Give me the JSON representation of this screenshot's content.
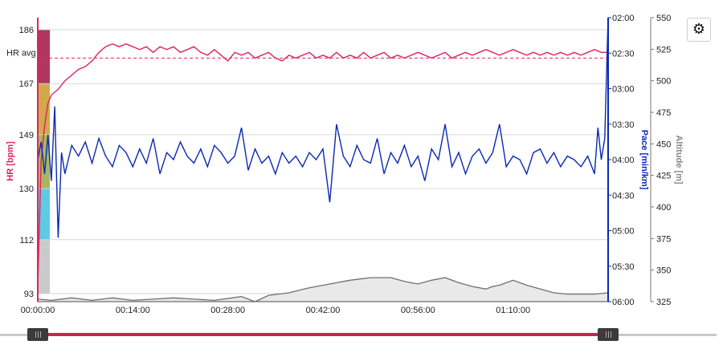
{
  "chart_data": {
    "type": "line",
    "x_ticks": [
      "00:00:00",
      "00:14:00",
      "00:28:00",
      "00:42:00",
      "00:56:00",
      "01:10:00"
    ],
    "x_range_min": [
      0,
      84
    ],
    "y_axes": {
      "hr": {
        "title": "HR [bpm]",
        "ticks": [
          93,
          112,
          130,
          149,
          167,
          186
        ],
        "range": [
          93,
          186
        ],
        "color": "#e0245e"
      },
      "pace": {
        "title": "Pace [min/km]",
        "ticks": [
          "02:00",
          "02:30",
          "03:00",
          "03:30",
          "04:00",
          "04:30",
          "05:00",
          "05:30",
          "06:00"
        ],
        "range_min_per_km": [
          2.0,
          6.0
        ],
        "color": "#0a28b5"
      },
      "altitude": {
        "title": "Altitude [m]",
        "ticks": [
          325,
          350,
          375,
          400,
          425,
          450,
          475,
          500,
          525,
          550
        ],
        "range": [
          325,
          550
        ],
        "color": "#888888"
      }
    },
    "hr_avg": {
      "label": "HR avg",
      "value": 176
    },
    "hr_zones": [
      {
        "from": 93,
        "to": 112,
        "color": "#c8cacb"
      },
      {
        "from": 112,
        "to": 130,
        "color": "#5ccbe3"
      },
      {
        "from": 130,
        "to": 149,
        "color": "#a9b65f"
      },
      {
        "from": 149,
        "to": 167,
        "color": "#d2a84c"
      },
      {
        "from": 167,
        "to": 186,
        "color": "#b03660"
      }
    ],
    "series": [
      {
        "name": "HR [bpm]",
        "axis": "hr",
        "points": [
          [
            0,
            95
          ],
          [
            0.5,
            140
          ],
          [
            1,
            152
          ],
          [
            1.5,
            160
          ],
          [
            2,
            163
          ],
          [
            3,
            165
          ],
          [
            4,
            168
          ],
          [
            5,
            170
          ],
          [
            6,
            172
          ],
          [
            7,
            173
          ],
          [
            8,
            175
          ],
          [
            9,
            178
          ],
          [
            10,
            180
          ],
          [
            11,
            181
          ],
          [
            12,
            180
          ],
          [
            13,
            181
          ],
          [
            14,
            180
          ],
          [
            15,
            179
          ],
          [
            16,
            180
          ],
          [
            17,
            178
          ],
          [
            18,
            180
          ],
          [
            19,
            179
          ],
          [
            20,
            180
          ],
          [
            21,
            178
          ],
          [
            22,
            179
          ],
          [
            23,
            180
          ],
          [
            24,
            178
          ],
          [
            25,
            177
          ],
          [
            26,
            179
          ],
          [
            27,
            177
          ],
          [
            28,
            175
          ],
          [
            29,
            178
          ],
          [
            30,
            177
          ],
          [
            31,
            178
          ],
          [
            32,
            176
          ],
          [
            33,
            177
          ],
          [
            34,
            178
          ],
          [
            35,
            176
          ],
          [
            36,
            175
          ],
          [
            37,
            177
          ],
          [
            38,
            176
          ],
          [
            39,
            177
          ],
          [
            40,
            178
          ],
          [
            41,
            176
          ],
          [
            42,
            177
          ],
          [
            43,
            176
          ],
          [
            44,
            178
          ],
          [
            45,
            176
          ],
          [
            46,
            177
          ],
          [
            47,
            176
          ],
          [
            48,
            178
          ],
          [
            49,
            176
          ],
          [
            50,
            177
          ],
          [
            51,
            178
          ],
          [
            52,
            176
          ],
          [
            53,
            177
          ],
          [
            54,
            176
          ],
          [
            55,
            177
          ],
          [
            56,
            178
          ],
          [
            57,
            177
          ],
          [
            58,
            176
          ],
          [
            59,
            177
          ],
          [
            60,
            178
          ],
          [
            61,
            176
          ],
          [
            62,
            177
          ],
          [
            63,
            178
          ],
          [
            64,
            177
          ],
          [
            65,
            178
          ],
          [
            66,
            179
          ],
          [
            67,
            178
          ],
          [
            68,
            177
          ],
          [
            69,
            178
          ],
          [
            70,
            179
          ],
          [
            71,
            178
          ],
          [
            72,
            177
          ],
          [
            73,
            178
          ],
          [
            74,
            177
          ],
          [
            75,
            178
          ],
          [
            76,
            177
          ],
          [
            77,
            178
          ],
          [
            78,
            177
          ],
          [
            79,
            178
          ],
          [
            80,
            177
          ],
          [
            81,
            178
          ],
          [
            82,
            179
          ],
          [
            83,
            178
          ],
          [
            84,
            178
          ]
        ]
      },
      {
        "name": "Pace [min/km]",
        "axis": "pace",
        "points": [
          [
            0,
            4.0
          ],
          [
            0.5,
            3.75
          ],
          [
            1,
            4.2
          ],
          [
            1.5,
            3.65
          ],
          [
            2,
            4.3
          ],
          [
            2.5,
            3.25
          ],
          [
            3,
            5.1
          ],
          [
            3.5,
            3.9
          ],
          [
            4,
            4.2
          ],
          [
            4.5,
            4.0
          ],
          [
            5,
            3.8
          ],
          [
            6,
            3.95
          ],
          [
            7,
            3.75
          ],
          [
            8,
            4.05
          ],
          [
            9,
            3.7
          ],
          [
            10,
            3.95
          ],
          [
            11,
            4.1
          ],
          [
            12,
            3.8
          ],
          [
            13,
            3.9
          ],
          [
            14,
            4.1
          ],
          [
            15,
            3.85
          ],
          [
            16,
            4.05
          ],
          [
            17,
            3.7
          ],
          [
            18,
            4.2
          ],
          [
            19,
            3.9
          ],
          [
            20,
            4.0
          ],
          [
            21,
            3.75
          ],
          [
            22,
            3.95
          ],
          [
            23,
            4.05
          ],
          [
            24,
            3.85
          ],
          [
            25,
            4.1
          ],
          [
            26,
            3.8
          ],
          [
            27,
            3.9
          ],
          [
            28,
            4.05
          ],
          [
            29,
            3.95
          ],
          [
            30,
            3.55
          ],
          [
            31,
            4.15
          ],
          [
            32,
            3.85
          ],
          [
            33,
            4.05
          ],
          [
            34,
            3.95
          ],
          [
            35,
            4.2
          ],
          [
            36,
            3.9
          ],
          [
            37,
            4.05
          ],
          [
            38,
            3.95
          ],
          [
            39,
            4.1
          ],
          [
            40,
            3.9
          ],
          [
            41,
            4.0
          ],
          [
            42,
            3.85
          ],
          [
            43,
            4.6
          ],
          [
            44,
            3.5
          ],
          [
            45,
            3.95
          ],
          [
            46,
            4.1
          ],
          [
            47,
            3.8
          ],
          [
            48,
            4.0
          ],
          [
            49,
            4.05
          ],
          [
            50,
            3.7
          ],
          [
            51,
            4.2
          ],
          [
            52,
            3.9
          ],
          [
            53,
            4.05
          ],
          [
            54,
            3.8
          ],
          [
            55,
            4.1
          ],
          [
            56,
            3.95
          ],
          [
            57,
            4.3
          ],
          [
            58,
            3.85
          ],
          [
            59,
            4.0
          ],
          [
            60,
            3.5
          ],
          [
            61,
            4.1
          ],
          [
            62,
            3.9
          ],
          [
            63,
            4.2
          ],
          [
            64,
            3.95
          ],
          [
            65,
            3.85
          ],
          [
            66,
            4.05
          ],
          [
            67,
            3.9
          ],
          [
            68,
            3.5
          ],
          [
            69,
            4.1
          ],
          [
            70,
            3.95
          ],
          [
            71,
            4.0
          ],
          [
            72,
            4.2
          ],
          [
            73,
            3.9
          ],
          [
            74,
            3.85
          ],
          [
            75,
            4.05
          ],
          [
            76,
            3.9
          ],
          [
            77,
            4.1
          ],
          [
            78,
            3.95
          ],
          [
            79,
            4.0
          ],
          [
            80,
            4.1
          ],
          [
            81,
            3.95
          ],
          [
            82,
            4.2
          ],
          [
            82.5,
            3.55
          ],
          [
            83,
            4.0
          ],
          [
            83.5,
            3.7
          ],
          [
            84,
            2.0
          ]
        ]
      },
      {
        "name": "Altitude [m]",
        "axis": "altitude",
        "points": [
          [
            0,
            327
          ],
          [
            2,
            326
          ],
          [
            5,
            328
          ],
          [
            8,
            326
          ],
          [
            11,
            328
          ],
          [
            14,
            326
          ],
          [
            17,
            327
          ],
          [
            20,
            328
          ],
          [
            23,
            327
          ],
          [
            26,
            326
          ],
          [
            30,
            329
          ],
          [
            32,
            325
          ],
          [
            34,
            330
          ],
          [
            37,
            332
          ],
          [
            40,
            336
          ],
          [
            43,
            339
          ],
          [
            46,
            342
          ],
          [
            49,
            344
          ],
          [
            52,
            344
          ],
          [
            54,
            341
          ],
          [
            56,
            339
          ],
          [
            58,
            342
          ],
          [
            60,
            344
          ],
          [
            62,
            340
          ],
          [
            64,
            337
          ],
          [
            66,
            335
          ],
          [
            67,
            337
          ],
          [
            68,
            338
          ],
          [
            70,
            342
          ],
          [
            72,
            338
          ],
          [
            74,
            335
          ],
          [
            76,
            332
          ],
          [
            78,
            331
          ],
          [
            80,
            331
          ],
          [
            82,
            331
          ],
          [
            84,
            332
          ]
        ]
      }
    ]
  },
  "settings": {
    "icon": "gear-icon",
    "glyph": "⚙"
  },
  "range_slider": {
    "left_handle_icon": "slider-handle",
    "right_handle_icon": "slider-handle"
  }
}
